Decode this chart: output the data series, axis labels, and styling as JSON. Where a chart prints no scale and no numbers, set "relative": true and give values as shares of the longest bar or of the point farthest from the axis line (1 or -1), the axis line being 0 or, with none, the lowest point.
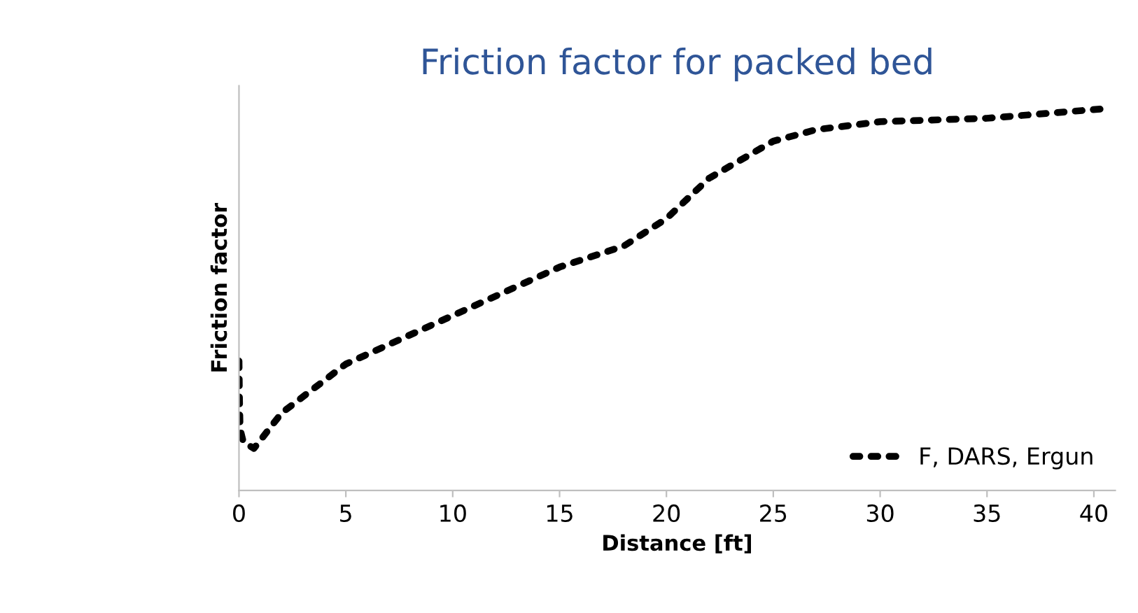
{
  "chart_data": {
    "type": "line",
    "title": "Friction factor for packed bed",
    "xlabel": "Distance [ft]",
    "ylabel": "Friction factor",
    "relative": true,
    "xlim": [
      0,
      41
    ],
    "xticks": [
      0,
      5,
      10,
      15,
      20,
      25,
      30,
      35,
      40
    ],
    "grid": false,
    "legend": "bottom right",
    "line_style": "dotted",
    "series": [
      {
        "name": "F, DARS, Ergun",
        "color": "#000000",
        "x": [
          0,
          0.02,
          0.05,
          0.2,
          0.7,
          2,
          5,
          10,
          15,
          18,
          20,
          22,
          25,
          27,
          30,
          35,
          40.5
        ],
        "values": [
          0.339,
          0.246,
          0.161,
          0.127,
          0.11,
          0.203,
          0.331,
          0.458,
          0.585,
          0.64,
          0.712,
          0.818,
          0.915,
          0.945,
          0.966,
          0.975,
          1
        ]
      }
    ]
  }
}
